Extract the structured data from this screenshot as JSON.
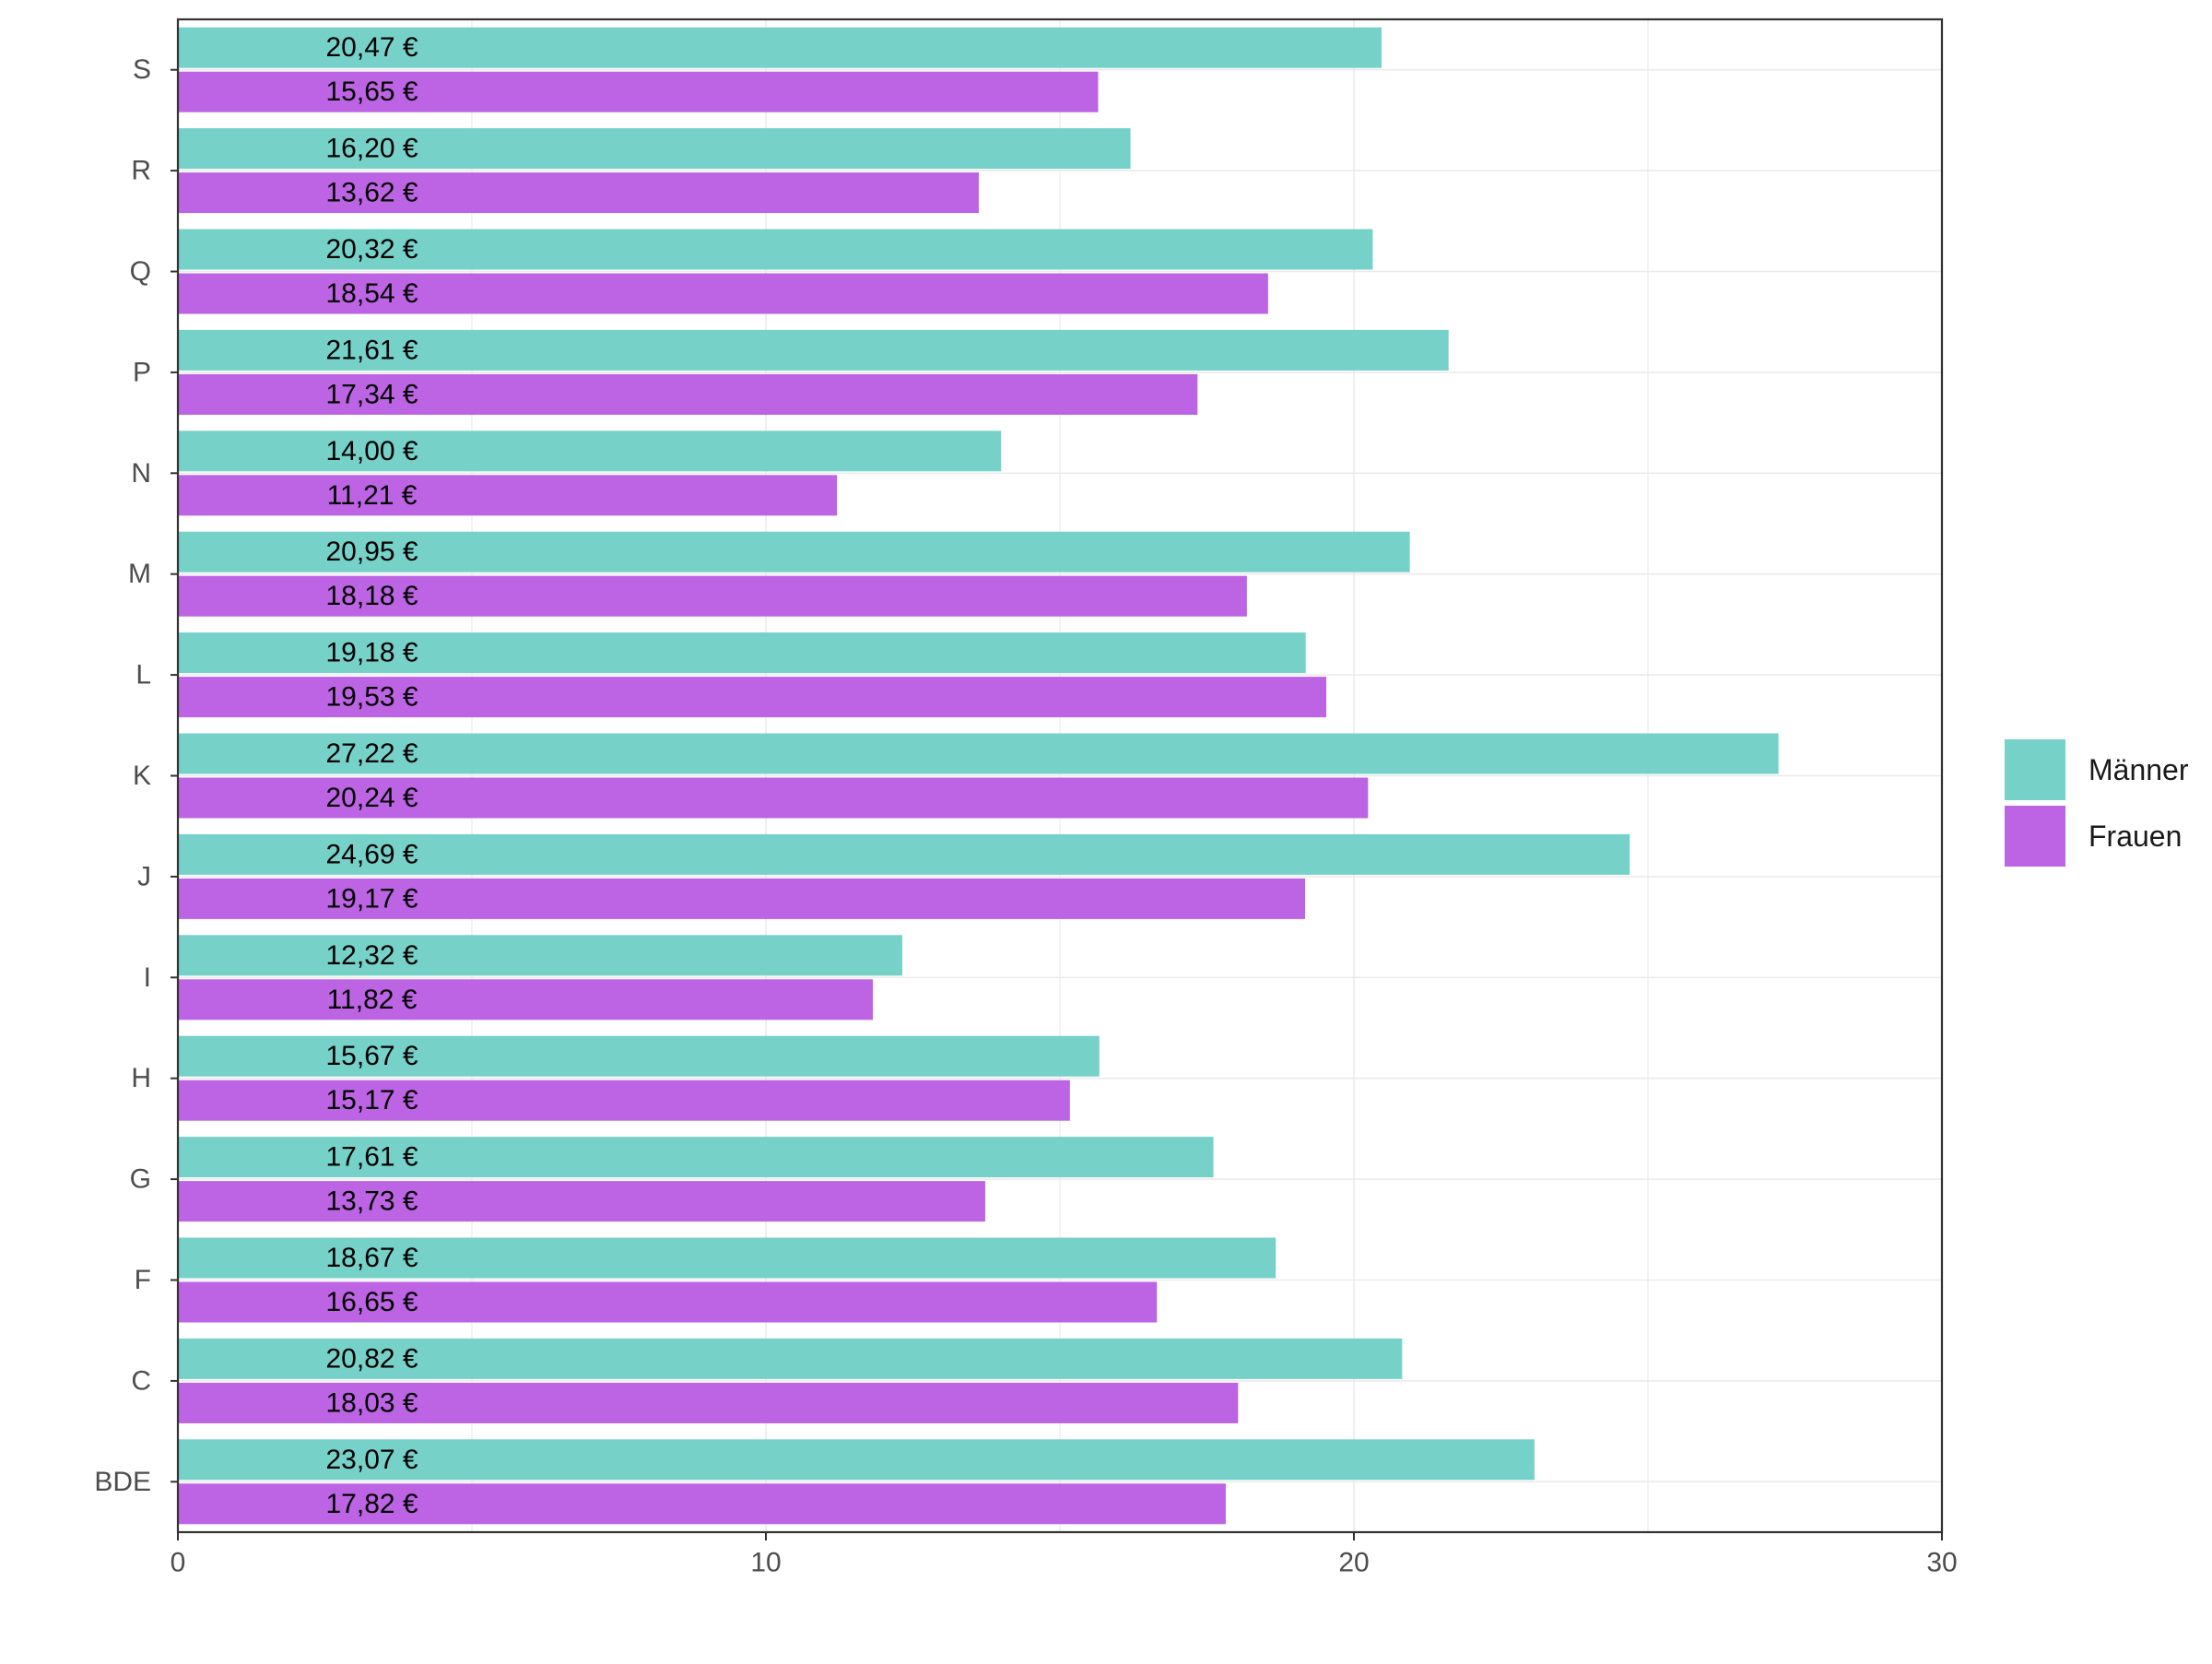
{
  "chart_data": {
    "type": "bar",
    "orientation": "horizontal",
    "categories": [
      "S",
      "R",
      "Q",
      "P",
      "N",
      "M",
      "L",
      "K",
      "J",
      "I",
      "H",
      "G",
      "F",
      "C",
      "BDE"
    ],
    "series": [
      {
        "name": "Männer",
        "color": "#76d1c9",
        "values": [
          20.47,
          16.2,
          20.32,
          21.61,
          14.0,
          20.95,
          19.18,
          27.22,
          24.69,
          12.32,
          15.67,
          17.61,
          18.67,
          20.82,
          23.07
        ],
        "labels": [
          "20,47 €",
          "16,20 €",
          "20,32 €",
          "21,61 €",
          "14,00 €",
          "20,95 €",
          "19,18 €",
          "27,22 €",
          "24,69 €",
          "12,32 €",
          "15,67 €",
          "17,61 €",
          "18,67 €",
          "20,82 €",
          "23,07 €"
        ]
      },
      {
        "name": "Frauen",
        "color": "#bc64e3",
        "values": [
          15.65,
          13.62,
          18.54,
          17.34,
          11.21,
          18.18,
          19.53,
          20.24,
          19.17,
          11.82,
          15.17,
          13.73,
          16.65,
          18.03,
          17.82
        ],
        "labels": [
          "15,65 €",
          "13,62 €",
          "18,54 €",
          "17,34 €",
          "11,21 €",
          "18,18 €",
          "19,53 €",
          "20,24 €",
          "19,17 €",
          "11,82 €",
          "15,17 €",
          "13,73 €",
          "16,65 €",
          "18,03 €",
          "17,82 €"
        ]
      }
    ],
    "xlim": [
      0,
      30
    ],
    "xticks": [
      0,
      10,
      20,
      30
    ],
    "title": "",
    "xlabel": "",
    "ylabel": "",
    "grid": true,
    "legend_position": "right"
  }
}
